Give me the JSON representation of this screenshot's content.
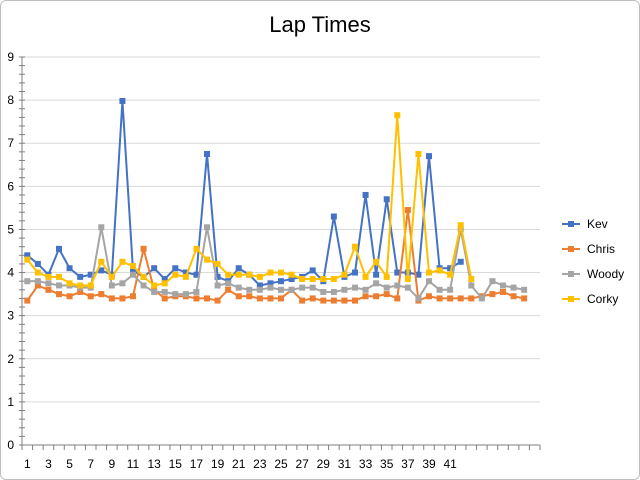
{
  "chart_data": {
    "type": "line",
    "title": "Lap Times",
    "xlabel": "",
    "ylabel": "",
    "ylim": [
      0,
      9
    ],
    "y_ticks": [
      0,
      1,
      2,
      3,
      4,
      5,
      6,
      7,
      8,
      9
    ],
    "x_count": 49,
    "x_tick_labels": [
      "1",
      "3",
      "5",
      "7",
      "9",
      "11",
      "13",
      "15",
      "17",
      "19",
      "21",
      "23",
      "25",
      "27",
      "29",
      "31",
      "33",
      "35",
      "37",
      "39",
      "41"
    ],
    "grid": true,
    "legend_position": "right",
    "series": [
      {
        "name": "Kev",
        "color": "#4472C4",
        "marker": "square",
        "values": [
          4.4,
          4.2,
          3.95,
          4.55,
          4.1,
          3.9,
          3.95,
          4.05,
          3.95,
          7.98,
          4.05,
          3.9,
          4.1,
          3.85,
          4.1,
          4.0,
          3.95,
          6.75,
          3.9,
          3.8,
          4.1,
          3.95,
          3.7,
          3.75,
          3.8,
          3.85,
          3.9,
          4.05,
          3.8,
          5.3,
          3.9,
          4.0,
          5.8,
          3.95,
          5.7,
          4.0,
          4.0,
          3.95,
          6.7,
          4.1,
          4.1,
          4.25
        ]
      },
      {
        "name": "Chris",
        "color": "#ED7D31",
        "marker": "square",
        "values": [
          3.35,
          3.7,
          3.6,
          3.5,
          3.45,
          3.55,
          3.45,
          3.5,
          3.4,
          3.4,
          3.45,
          4.55,
          3.6,
          3.4,
          3.45,
          3.45,
          3.4,
          3.4,
          3.35,
          3.6,
          3.45,
          3.45,
          3.4,
          3.4,
          3.4,
          3.6,
          3.35,
          3.4,
          3.35,
          3.35,
          3.35,
          3.35,
          3.45,
          3.45,
          3.5,
          3.4,
          5.45,
          3.35,
          3.45,
          3.4,
          3.4,
          3.4,
          3.4,
          3.45,
          3.5,
          3.55,
          3.45,
          3.4
        ]
      },
      {
        "name": "Woody",
        "color": "#A5A5A5",
        "marker": "square",
        "values": [
          3.8,
          3.8,
          3.75,
          3.7,
          3.7,
          3.65,
          3.65,
          5.05,
          3.7,
          3.75,
          3.95,
          3.7,
          3.55,
          3.55,
          3.5,
          3.5,
          3.55,
          5.05,
          3.7,
          3.75,
          3.65,
          3.6,
          3.6,
          3.65,
          3.6,
          3.6,
          3.65,
          3.65,
          3.55,
          3.55,
          3.6,
          3.65,
          3.6,
          3.75,
          3.65,
          3.7,
          3.65,
          3.4,
          3.8,
          3.6,
          3.6,
          5.0,
          3.7,
          3.4,
          3.8,
          3.7,
          3.65,
          3.6
        ]
      },
      {
        "name": "Corky",
        "color": "#FFC000",
        "marker": "square",
        "values": [
          4.3,
          4.0,
          3.9,
          3.9,
          3.75,
          3.7,
          3.7,
          4.25,
          3.9,
          4.25,
          4.15,
          3.9,
          3.7,
          3.75,
          3.95,
          3.9,
          4.55,
          4.3,
          4.2,
          3.95,
          3.95,
          3.95,
          3.9,
          4.0,
          4.0,
          3.95,
          3.85,
          3.85,
          3.85,
          3.85,
          3.95,
          4.6,
          3.9,
          4.25,
          3.9,
          7.65,
          3.85,
          6.75,
          4.0,
          4.05,
          3.95,
          5.1,
          3.85
        ]
      }
    ]
  }
}
